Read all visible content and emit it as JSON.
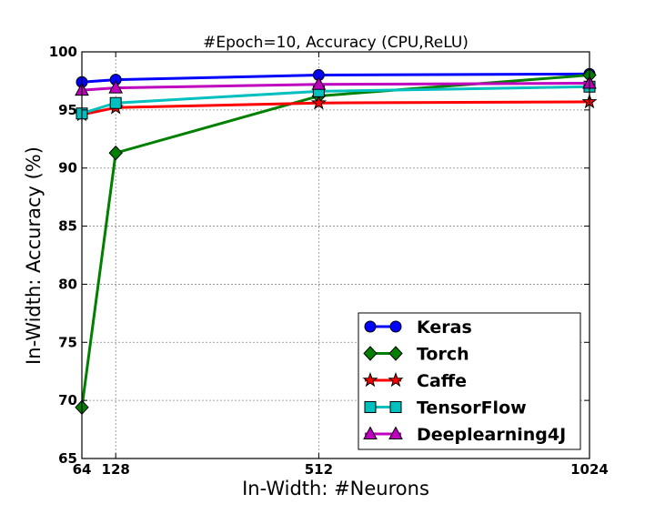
{
  "chart_data": {
    "type": "line",
    "title": "#Epoch=10, Accuracy (CPU,ReLU)",
    "xlabel": "In-Width: #Neurons",
    "ylabel": "In-Width: Accuracy (%)",
    "x": [
      64,
      128,
      512,
      1024
    ],
    "x_ticks": [
      "64",
      "128",
      "512",
      "1024"
    ],
    "xlim": [
      64,
      1024
    ],
    "ylim": [
      65,
      100
    ],
    "y_ticks": [
      65,
      70,
      75,
      80,
      85,
      90,
      95,
      100
    ],
    "grid": true,
    "legend_position": "lower-right",
    "series": [
      {
        "name": "Keras",
        "color": "#0000ff",
        "marker": "circle",
        "values": [
          97.4,
          97.6,
          98.0,
          98.1
        ]
      },
      {
        "name": "Torch",
        "color": "#008000",
        "marker": "diamond",
        "values": [
          69.4,
          91.3,
          96.2,
          98.0
        ]
      },
      {
        "name": "Caffe",
        "color": "#ff0000",
        "marker": "star",
        "values": [
          94.6,
          95.2,
          95.6,
          95.7
        ]
      },
      {
        "name": "TensorFlow",
        "color": "#00bfbf",
        "marker": "square",
        "values": [
          94.7,
          95.6,
          96.6,
          97.0
        ]
      },
      {
        "name": "Deeplearning4J",
        "color": "#bf00bf",
        "marker": "triangle",
        "values": [
          96.7,
          96.9,
          97.2,
          97.3
        ]
      }
    ]
  }
}
